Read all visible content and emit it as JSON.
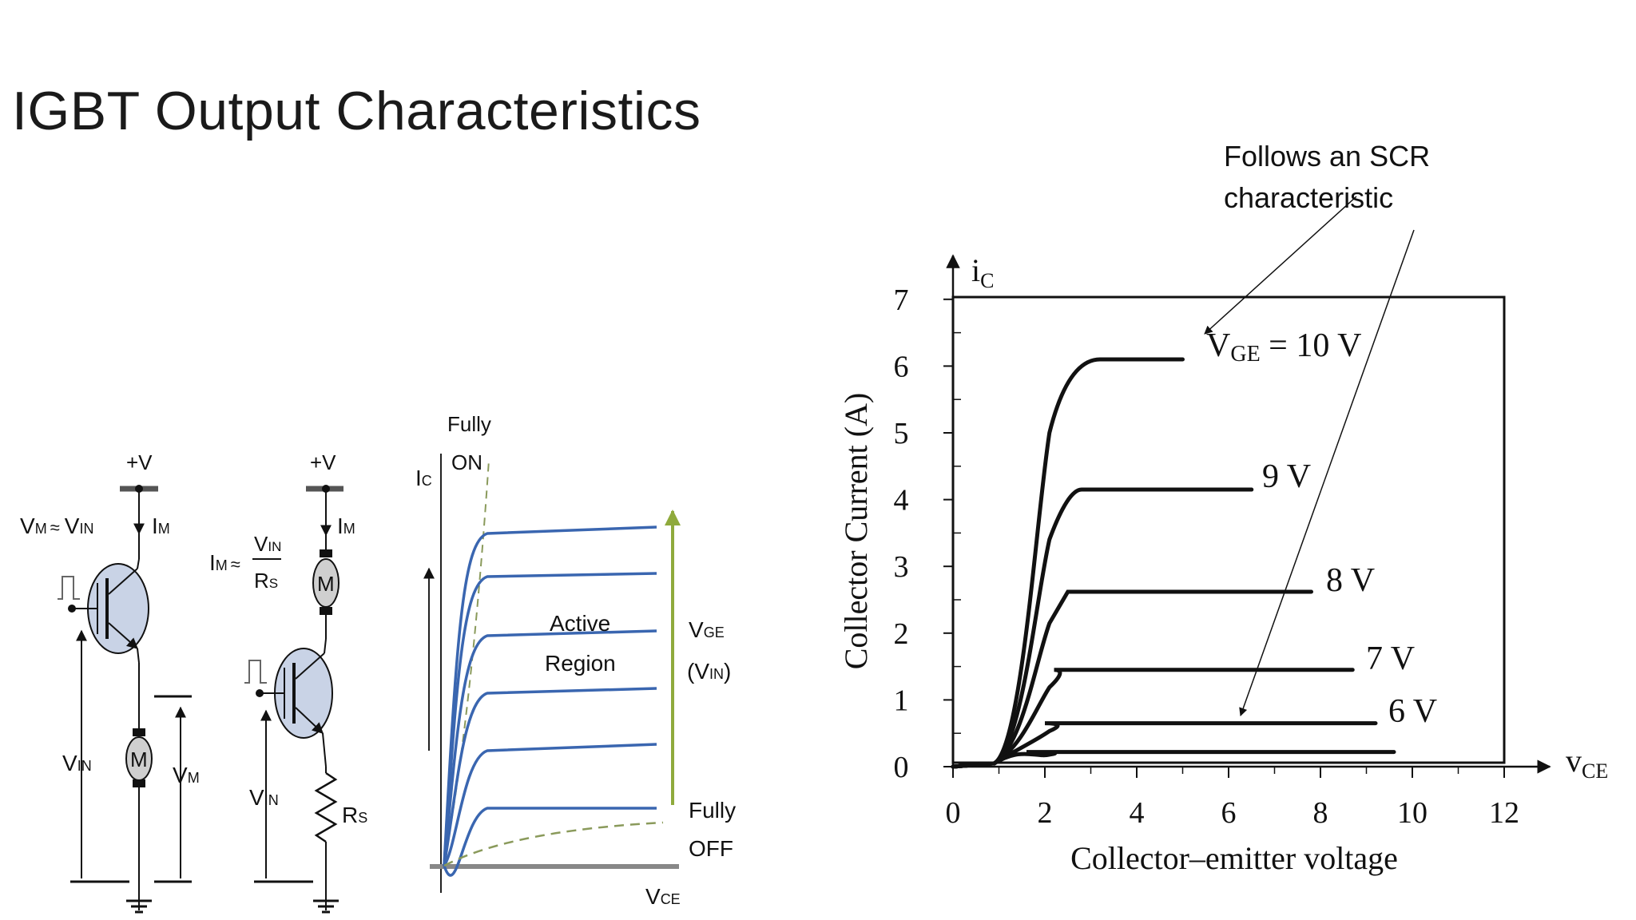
{
  "slide": {
    "title": "IGBT Output Characteristics",
    "annotation": [
      "Follows an SCR",
      "characteristic"
    ]
  },
  "circuit1": {
    "supply": "+V",
    "current": "I",
    "current_sub": "M",
    "vm_relation": "V",
    "vm_sub": "M",
    "approx": "≈",
    "vin": "V",
    "vin_sub": "IN",
    "motor": "M",
    "vm_label": "V",
    "vm_label_sub": "M",
    "vin_label": "V",
    "vin_label_sub": "IN"
  },
  "circuit2": {
    "supply": "+V",
    "current": "I",
    "current_sub": "M",
    "im_relation": "I",
    "im_sub": "M",
    "approx": "≈",
    "frac_num": "V",
    "frac_num_sub": "IN",
    "frac_den": "R",
    "frac_den_sub": "S",
    "motor": "M",
    "vin_label": "V",
    "vin_label_sub": "IN",
    "res_label": "R",
    "res_label_sub": "S"
  },
  "small_chart": {
    "ylabel": "I",
    "ylabel_sub": "C",
    "xlabel": "V",
    "xlabel_sub": "CE",
    "fully_on": [
      "Fully",
      "ON"
    ],
    "active_region": [
      "Active",
      "Region"
    ],
    "vge": "V",
    "vge_sub": "GE",
    "vin_paren": "(V",
    "vin_paren_sub": "IN",
    "vin_paren_close": ")",
    "fully_off": [
      "Fully",
      "OFF"
    ]
  },
  "chart_data": {
    "type": "line",
    "ylabel": "Collector Current (A)",
    "xlabel": "Collector–emitter voltage",
    "axis_x_name": "v",
    "axis_x_sub": "CE",
    "axis_y_name": "i",
    "axis_y_sub": "C",
    "xlim": [
      0,
      12
    ],
    "ylim": [
      0,
      7
    ],
    "xticks": [
      "0",
      "2",
      "4",
      "6",
      "8",
      "10",
      "12"
    ],
    "yticks": [
      "0",
      "1",
      "2",
      "3",
      "4",
      "5",
      "6",
      "7"
    ],
    "series": [
      {
        "name": "V_GE = 10 V",
        "label_main": "V",
        "label_sub": "GE",
        "label_rest": " = 10 V",
        "sat": 6.1,
        "knee": 3.2,
        "end": 5.0
      },
      {
        "name": "9 V",
        "label_main": "9 V",
        "sat": 4.15,
        "knee": 2.8,
        "end": 6.5
      },
      {
        "name": "8 V",
        "label_main": "8 V",
        "sat": 2.62,
        "knee": 2.5,
        "end": 7.8
      },
      {
        "name": "7 V",
        "label_main": "7 V",
        "sat": 1.45,
        "knee": 2.2,
        "end": 8.7
      },
      {
        "name": "6 V",
        "label_main": "6 V",
        "sat": 0.65,
        "knee": 2.0,
        "end": 9.2
      },
      {
        "name": "",
        "label_main": "",
        "sat": 0.22,
        "knee": 1.6,
        "end": 9.6
      }
    ]
  }
}
